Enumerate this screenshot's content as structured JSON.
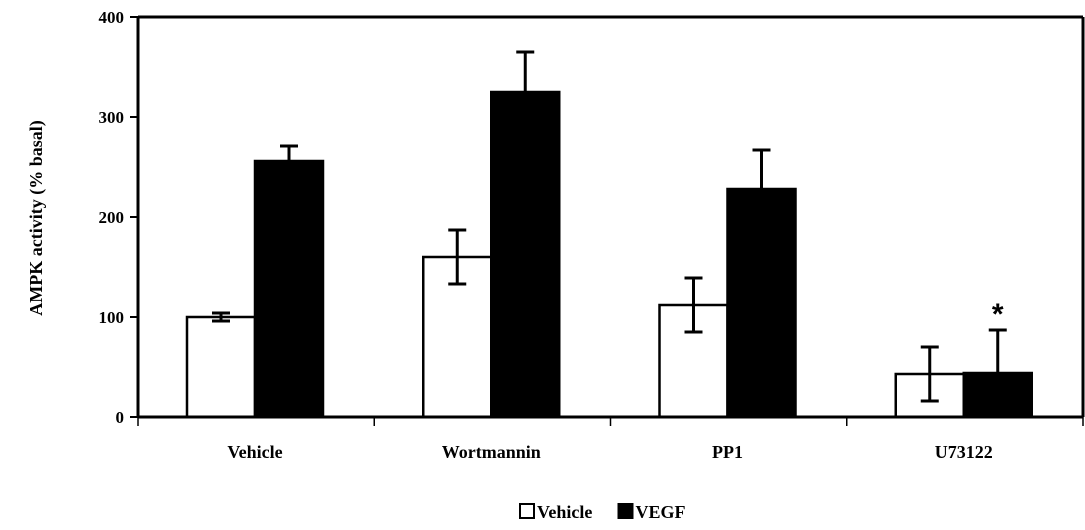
{
  "chart_data": {
    "type": "bar",
    "title": "",
    "xlabel": "",
    "ylabel": "AMPK activity (% basal)",
    "ylim": [
      0,
      400
    ],
    "yticks": [
      "0",
      "100",
      "200",
      "300",
      "400"
    ],
    "grid": false,
    "legend_position": "bottom-center",
    "categories": [
      "Vehicle",
      "Wortmannin",
      "PP1",
      "U73122"
    ],
    "series": [
      {
        "name": "Vehicle",
        "color": "#ffffff",
        "values": [
          100,
          160,
          112,
          43
        ],
        "errors": [
          4,
          27,
          27,
          27
        ]
      },
      {
        "name": "VEGF",
        "color": "#000000",
        "values": [
          256,
          325,
          228,
          44
        ],
        "errors": [
          15,
          40,
          39,
          43
        ]
      }
    ],
    "annotations": [
      {
        "text": "*",
        "category": "U73122",
        "series": "VEGF"
      }
    ]
  }
}
